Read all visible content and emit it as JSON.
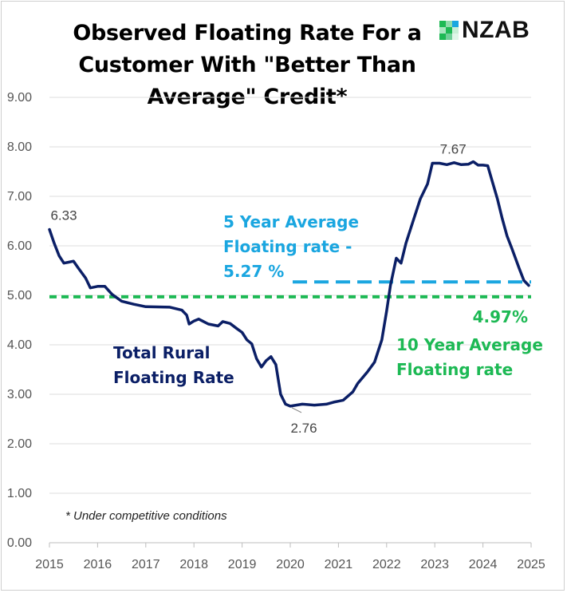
{
  "brand": {
    "name": "NZAB"
  },
  "chart_data": {
    "type": "line",
    "title_lines": [
      "Observed Floating Rate For a",
      "Customer With \"Better Than",
      "Average\" Credit*"
    ],
    "y_ticks": [
      "0.00",
      "1.00",
      "2.00",
      "3.00",
      "4.00",
      "5.00",
      "6.00",
      "7.00",
      "8.00",
      "9.00"
    ],
    "x_ticks": [
      "2015",
      "2016",
      "2017",
      "2018",
      "2019",
      "2020",
      "2021",
      "2022",
      "2023",
      "2024",
      "2025"
    ],
    "ylim": [
      0,
      9
    ],
    "xlim": [
      2015,
      2025
    ],
    "grid": true,
    "series": [
      {
        "name": "Total Rural Floating Rate",
        "color": "#0b1f66",
        "points": [
          [
            2015.0,
            6.33
          ],
          [
            2015.1,
            6.05
          ],
          [
            2015.2,
            5.8
          ],
          [
            2015.3,
            5.65
          ],
          [
            2015.4,
            5.67
          ],
          [
            2015.5,
            5.69
          ],
          [
            2015.6,
            5.55
          ],
          [
            2015.75,
            5.35
          ],
          [
            2015.85,
            5.15
          ],
          [
            2016.0,
            5.18
          ],
          [
            2016.15,
            5.18
          ],
          [
            2016.3,
            5.02
          ],
          [
            2016.5,
            4.88
          ],
          [
            2016.75,
            4.82
          ],
          [
            2017.0,
            4.77
          ],
          [
            2017.5,
            4.76
          ],
          [
            2017.75,
            4.7
          ],
          [
            2017.85,
            4.6
          ],
          [
            2017.9,
            4.42
          ],
          [
            2018.0,
            4.48
          ],
          [
            2018.1,
            4.52
          ],
          [
            2018.3,
            4.42
          ],
          [
            2018.5,
            4.38
          ],
          [
            2018.6,
            4.47
          ],
          [
            2018.75,
            4.43
          ],
          [
            2018.9,
            4.32
          ],
          [
            2019.0,
            4.25
          ],
          [
            2019.1,
            4.1
          ],
          [
            2019.2,
            4.02
          ],
          [
            2019.3,
            3.72
          ],
          [
            2019.4,
            3.55
          ],
          [
            2019.5,
            3.68
          ],
          [
            2019.6,
            3.76
          ],
          [
            2019.7,
            3.6
          ],
          [
            2019.8,
            3.0
          ],
          [
            2019.9,
            2.8
          ],
          [
            2020.0,
            2.76
          ],
          [
            2020.25,
            2.8
          ],
          [
            2020.5,
            2.78
          ],
          [
            2020.75,
            2.8
          ],
          [
            2020.9,
            2.84
          ],
          [
            2021.0,
            2.86
          ],
          [
            2021.1,
            2.88
          ],
          [
            2021.3,
            3.05
          ],
          [
            2021.4,
            3.22
          ],
          [
            2021.6,
            3.45
          ],
          [
            2021.75,
            3.65
          ],
          [
            2021.9,
            4.1
          ],
          [
            2022.0,
            4.68
          ],
          [
            2022.08,
            5.2
          ],
          [
            2022.2,
            5.75
          ],
          [
            2022.3,
            5.65
          ],
          [
            2022.4,
            6.05
          ],
          [
            2022.55,
            6.5
          ],
          [
            2022.7,
            6.95
          ],
          [
            2022.85,
            7.25
          ],
          [
            2022.95,
            7.67
          ],
          [
            2023.1,
            7.67
          ],
          [
            2023.25,
            7.64
          ],
          [
            2023.4,
            7.68
          ],
          [
            2023.55,
            7.64
          ],
          [
            2023.7,
            7.65
          ],
          [
            2023.8,
            7.7
          ],
          [
            2023.9,
            7.63
          ],
          [
            2024.0,
            7.63
          ],
          [
            2024.1,
            7.62
          ],
          [
            2024.2,
            7.28
          ],
          [
            2024.3,
            6.95
          ],
          [
            2024.4,
            6.55
          ],
          [
            2024.5,
            6.2
          ],
          [
            2024.6,
            5.95
          ],
          [
            2024.75,
            5.55
          ],
          [
            2024.85,
            5.3
          ],
          [
            2024.95,
            5.2
          ]
        ]
      }
    ],
    "series_label_lines": [
      "Total Rural",
      "Floating Rate"
    ],
    "reference_lines": [
      {
        "value": 5.27,
        "x_start": 2020.05,
        "x_end": 2025.0,
        "color": "#1aa6e0",
        "label_lines": [
          "5 Year Average",
          "Floating rate -",
          "5.27 %"
        ]
      },
      {
        "value": 4.97,
        "x_start": 2015.0,
        "x_end": 2025.0,
        "color": "#1db954",
        "value_label": "4.97%",
        "label_lines": [
          "10 Year Average",
          "Floating rate"
        ]
      }
    ],
    "annotations": [
      {
        "text": "6.33",
        "x": 2015.0,
        "y": 6.33
      },
      {
        "text": "2.76",
        "x": 2020.0,
        "y": 2.76
      },
      {
        "text": "7.67",
        "x": 2022.95,
        "y": 7.67
      }
    ],
    "footnote": "* Under competitive conditions"
  }
}
